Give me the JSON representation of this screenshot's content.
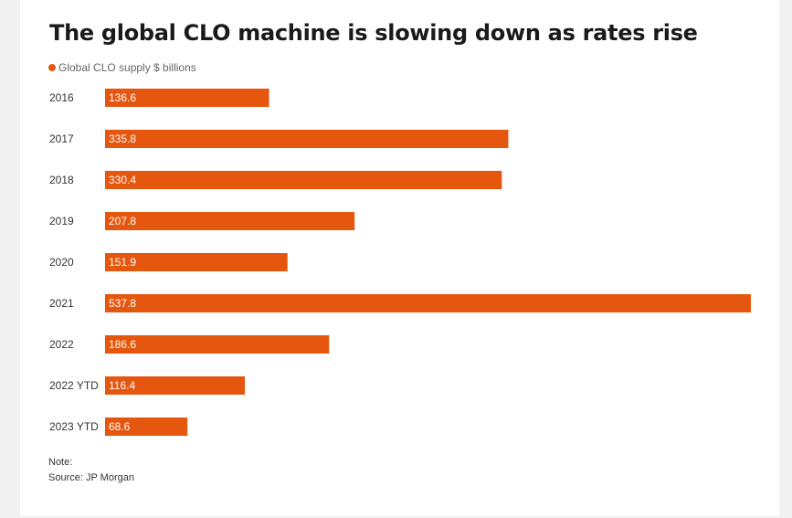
{
  "chart_data": {
    "type": "bar",
    "orientation": "horizontal",
    "title": "The global CLO machine is slowing down as rates rise",
    "categories": [
      "2016",
      "2017",
      "2018",
      "2019",
      "2020",
      "2021",
      "2022",
      "2022 YTD",
      "2023 YTD"
    ],
    "series": [
      {
        "name": "Global CLO supply $ billions",
        "color": "#e5560f",
        "values": [
          136.6,
          335.8,
          330.4,
          207.8,
          151.9,
          537.8,
          186.6,
          116.4,
          68.6
        ],
        "value_labels": [
          "136.6",
          "335.8",
          "330.4",
          "207.8",
          "151.9",
          "537.8",
          "186.6",
          "116.4",
          "68.6"
        ]
      }
    ],
    "xlim": [
      0,
      537.8
    ],
    "grid": false,
    "legend_position": "top-left"
  },
  "footer": {
    "note": "Note:",
    "source": "Source: JP Morgan"
  }
}
